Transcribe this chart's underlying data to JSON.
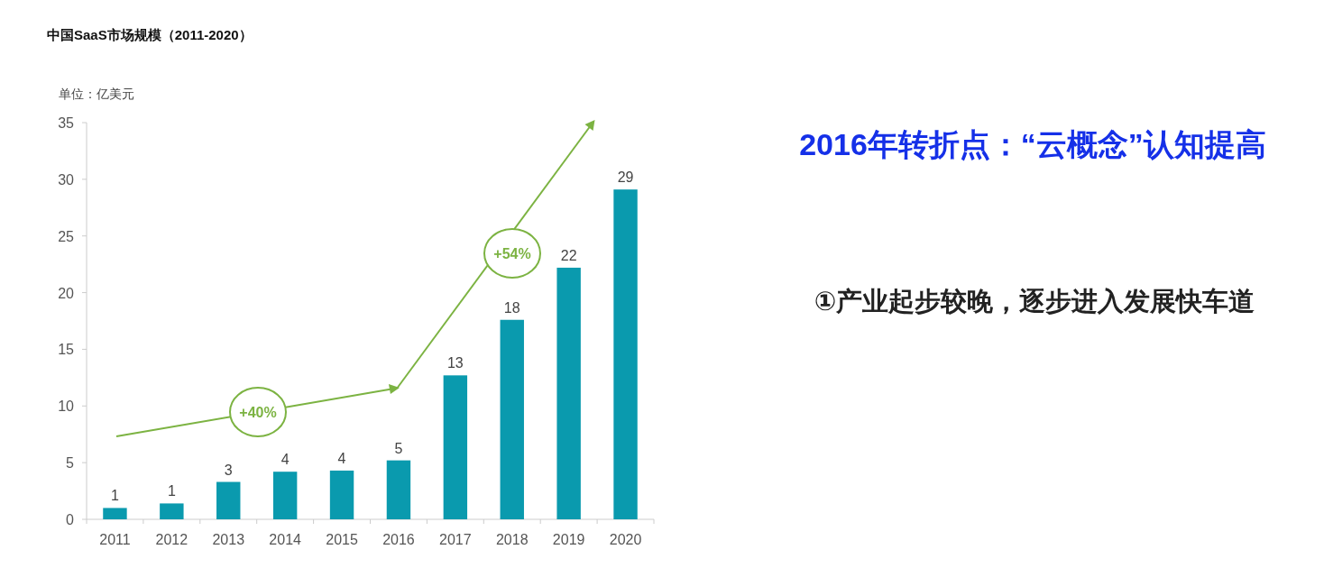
{
  "chart_data": {
    "type": "bar",
    "title": "中国SaaS市场规模（2011-2020）",
    "ylabel": "单位：亿美元",
    "categories": [
      "2011",
      "2012",
      "2013",
      "2014",
      "2015",
      "2016",
      "2017",
      "2018",
      "2019",
      "2020"
    ],
    "values": [
      1.0,
      1.4,
      3.3,
      4.2,
      4.3,
      5.2,
      12.7,
      17.6,
      22.2,
      29.1
    ],
    "value_labels": [
      "1",
      "1",
      "3",
      "4",
      "4",
      "5",
      "13",
      "18",
      "22",
      "29"
    ],
    "color": "#0a9aae",
    "ylim": [
      0,
      35
    ],
    "yticks": [
      0,
      5,
      10,
      15,
      20,
      25,
      30,
      35
    ],
    "grid": false,
    "annotations": [
      "+40%",
      "+54%",
      "2016年转折点：“云概念”认知提高",
      "①产业起步较晚，逐步进入发展快车道"
    ]
  }
}
